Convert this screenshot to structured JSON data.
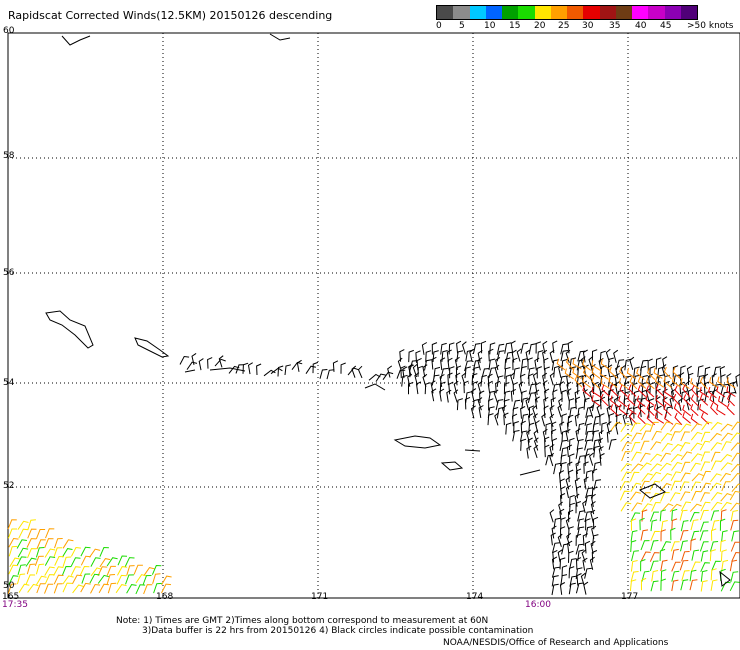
{
  "title": "Rapidscat Corrected Winds(12.5KM) 20150126 descending",
  "legend": {
    "colors": [
      "#4a4a4a",
      "#8c8c8c",
      "#00c8ff",
      "#0064ff",
      "#00a000",
      "#1adc00",
      "#ffe600",
      "#ffa000",
      "#f05a00",
      "#e60000",
      "#a01414",
      "#6e3c14",
      "#ff00ff",
      "#c800c8",
      "#8c00b4",
      "#500078"
    ],
    "labels": [
      "0",
      "5",
      "10",
      "15",
      "20",
      "25",
      "30",
      "35",
      "40",
      "45",
      ">50 knots"
    ]
  },
  "axes": {
    "lat_labels": [
      "60",
      "58",
      "56",
      "54",
      "52",
      "50"
    ],
    "lon_labels": [
      "165",
      "168",
      "171",
      "174",
      "177"
    ]
  },
  "times": {
    "left": "17:35",
    "middle": "16:00"
  },
  "notes": {
    "line1": "Note: 1) Times are GMT 2)Times along bottom correspond to measurement at 60N",
    "line2": "3)Data buffer is 22 hrs from 20150126 4) Black circles indicate possible contamination"
  },
  "credit": "NOAA/NESDIS/Office of Research and Applications"
}
